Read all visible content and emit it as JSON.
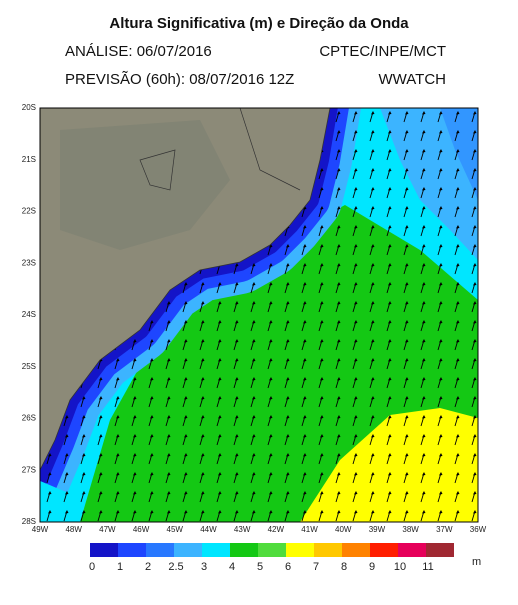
{
  "title": "Altura Significativa (m) e Direção da Onda",
  "analysis": "ANÁLISE: 06/07/2016",
  "source": "CPTEC/INPE/MCT",
  "forecast": "PREVISÃO (60h): 08/07/2016 12Z",
  "model": "WWATCH",
  "latitude_labels": [
    "20S",
    "21S",
    "22S",
    "23S",
    "24S",
    "25S",
    "26S",
    "27S",
    "28S"
  ],
  "longitude_labels": [
    "49W",
    "48W",
    "47W",
    "46W",
    "45W",
    "44W",
    "43W",
    "42W",
    "41W",
    "40W",
    "39W",
    "38W",
    "37W",
    "36W"
  ],
  "colorbar": {
    "labels": [
      "0",
      "1",
      "2",
      "2.5",
      "3",
      "4",
      "5",
      "6",
      "7",
      "8",
      "9",
      "10",
      "11"
    ],
    "colors": [
      "#1414c8",
      "#1e46ff",
      "#2878ff",
      "#3cb4ff",
      "#00e6ff",
      "#14c814",
      "#50dc3c",
      "#ffff00",
      "#ffc800",
      "#ff8200",
      "#ff1e00",
      "#e6005a",
      "#a02832"
    ],
    "unit": "m"
  }
}
